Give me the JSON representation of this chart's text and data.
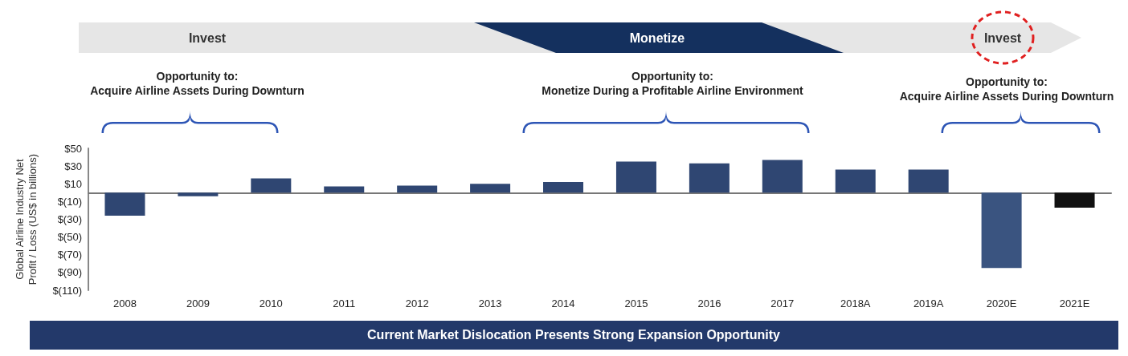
{
  "chart_data": {
    "type": "bar",
    "ylabel": "Global Airline Industry Net\nProfit / Loss (US$ in billions)",
    "categories": [
      "2008",
      "2009",
      "2010",
      "2011",
      "2012",
      "2013",
      "2014",
      "2015",
      "2016",
      "2017",
      "2018A",
      "2019A",
      "2020E",
      "2021E"
    ],
    "values": [
      -26,
      -4,
      16,
      7,
      8,
      10,
      12,
      35,
      33,
      37,
      26,
      26,
      -85,
      -17
    ],
    "colors": [
      "#2f4672",
      "#2f4672",
      "#2f4672",
      "#2f4672",
      "#2f4672",
      "#2f4672",
      "#2f4672",
      "#2f4672",
      "#2f4672",
      "#2f4672",
      "#2f4672",
      "#2f4672",
      "#3a5480",
      "#111111"
    ],
    "ylim": [
      -110,
      50
    ],
    "yticks": [
      {
        "value": 50,
        "label": "$50"
      },
      {
        "value": 30,
        "label": "$30"
      },
      {
        "value": 10,
        "label": "$10"
      },
      {
        "value": -10,
        "label": "$(10)"
      },
      {
        "value": -30,
        "label": "$(30)"
      },
      {
        "value": -50,
        "label": "$(50)"
      },
      {
        "value": -70,
        "label": "$(70)"
      },
      {
        "value": -90,
        "label": "$(90)"
      },
      {
        "value": -110,
        "label": "$(110)"
      }
    ],
    "grid": false,
    "annotations": [
      "Invest",
      "Monetize",
      "Invest",
      "Opportunity to:\nAcquire Airline Assets During Downturn",
      "Opportunity to:\nMonetize During a Profitable Airline Environment",
      "Opportunity to:\nAcquire Airline Assets During Downturn",
      "Current Market Dislocation Presents Strong Expansion Opportunity"
    ]
  }
}
